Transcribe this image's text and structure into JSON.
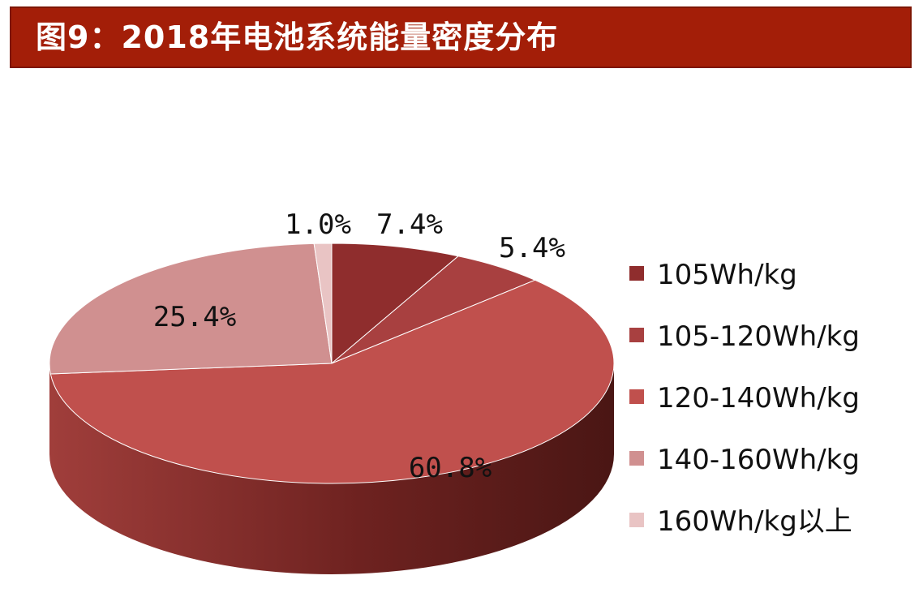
{
  "title": "图9：2018年电池系统能量密度分布",
  "chart_data": {
    "type": "pie",
    "three_d": true,
    "legend_position": "right",
    "categories": [
      "105Wh/kg",
      "105-120Wh/kg",
      "120-140Wh/kg",
      "140-160Wh/kg",
      "160Wh/kg以上"
    ],
    "values": [
      7.4,
      5.4,
      60.8,
      25.4,
      1.0
    ],
    "labels": [
      "7.4%",
      "5.4%",
      "60.8%",
      "25.4%",
      "1.0%"
    ],
    "colors": [
      "#8f2d2d",
      "#a84040",
      "#c0504d",
      "#d09090",
      "#e9c4c4"
    ]
  }
}
